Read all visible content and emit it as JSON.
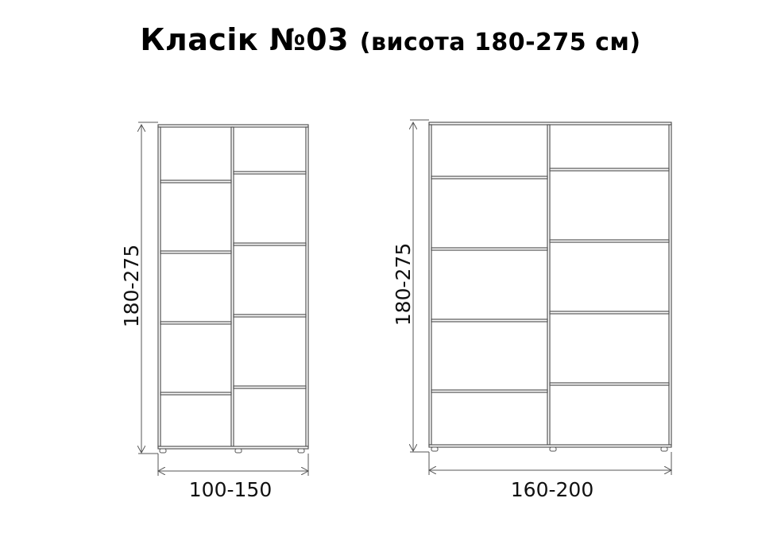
{
  "title": {
    "main": "Класік №03",
    "sub": "(висота 180-275 см)"
  },
  "wardrobes": [
    {
      "height_label": "180-275",
      "width_label": "100-150"
    },
    {
      "height_label": "180-275",
      "width_label": "160-200"
    }
  ],
  "colors": {
    "line": "#555555",
    "text": "#111111"
  }
}
